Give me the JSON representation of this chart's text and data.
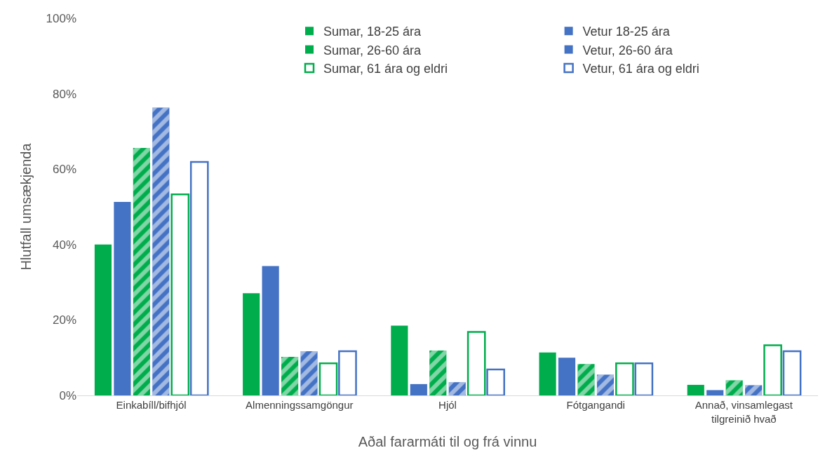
{
  "chart_data": {
    "type": "bar",
    "xlabel": "Aðal fararmáti til og frá vinnu",
    "ylabel": "Hlutfall umsækjenda",
    "categories": [
      "Einkabíll/bifhjól",
      "Almenningssamgöngur",
      "Hjól",
      "Fótgangandi",
      "Annað, vinsamlegast tilgreinið hvað"
    ],
    "series": [
      {
        "name": "Sumar, 18-25 ára",
        "color": "#00ad4c",
        "values": [
          40.0,
          27.1,
          18.5,
          11.4,
          2.8
        ]
      },
      {
        "name": "Vetur 18-25 ára",
        "color": "#4472c4",
        "values": [
          51.3,
          34.3,
          3.0,
          10.0,
          1.4
        ]
      },
      {
        "name": "Sumar, 26-60 ára",
        "color": "#00ad4c",
        "values": [
          65.6,
          10.2,
          11.9,
          8.3,
          4.0
        ]
      },
      {
        "name": "Vetur, 26-60 ára",
        "color": "#4472c4",
        "values": [
          76.3,
          11.7,
          3.5,
          5.5,
          2.7
        ]
      },
      {
        "name": "Sumar, 61 ára og eldri",
        "color": "#00ad4c",
        "values": [
          53.3,
          8.5,
          16.8,
          8.5,
          13.3
        ]
      },
      {
        "name": "Vetur, 61 ára og eldri",
        "color": "#4472c4",
        "values": [
          61.9,
          11.7,
          6.9,
          8.5,
          11.7
        ]
      }
    ],
    "ylim": [
      0,
      100
    ],
    "yticks": [
      {
        "value": 0,
        "label": "0%"
      },
      {
        "value": 20,
        "label": "20%"
      },
      {
        "value": 40,
        "label": "40%"
      },
      {
        "value": 60,
        "label": "60%"
      },
      {
        "value": 80,
        "label": "80%"
      },
      {
        "value": 100,
        "label": "100%"
      }
    ],
    "grid": false,
    "legend": "top right"
  }
}
